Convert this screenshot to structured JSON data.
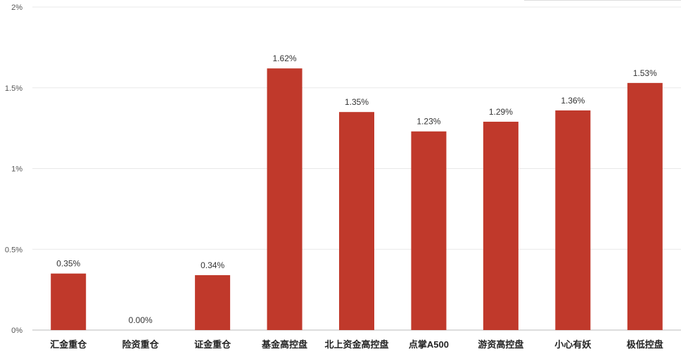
{
  "chart_data": {
    "type": "bar",
    "categories": [
      "汇金重仓",
      "险资重仓",
      "证金重仓",
      "基金高控盘",
      "北上资金高控盘",
      "点掌A500",
      "游资高控盘",
      "小心有妖",
      "极低控盘"
    ],
    "values": [
      0.35,
      0.0,
      0.34,
      1.62,
      1.35,
      1.23,
      1.29,
      1.36,
      1.53
    ],
    "data_labels": [
      "0.35%",
      "0.00%",
      "0.34%",
      "1.62%",
      "1.35%",
      "1.23%",
      "1.29%",
      "1.36%",
      "1.53%"
    ],
    "y_ticks": [
      0,
      0.5,
      1,
      1.5,
      2
    ],
    "y_tick_labels": [
      "0%",
      "0.5%",
      "1%",
      "1.5%",
      "2%"
    ],
    "ylim": [
      0,
      2
    ],
    "grid": true,
    "bar_color": "#c0392b",
    "title": "",
    "xlabel": "",
    "ylabel": ""
  }
}
